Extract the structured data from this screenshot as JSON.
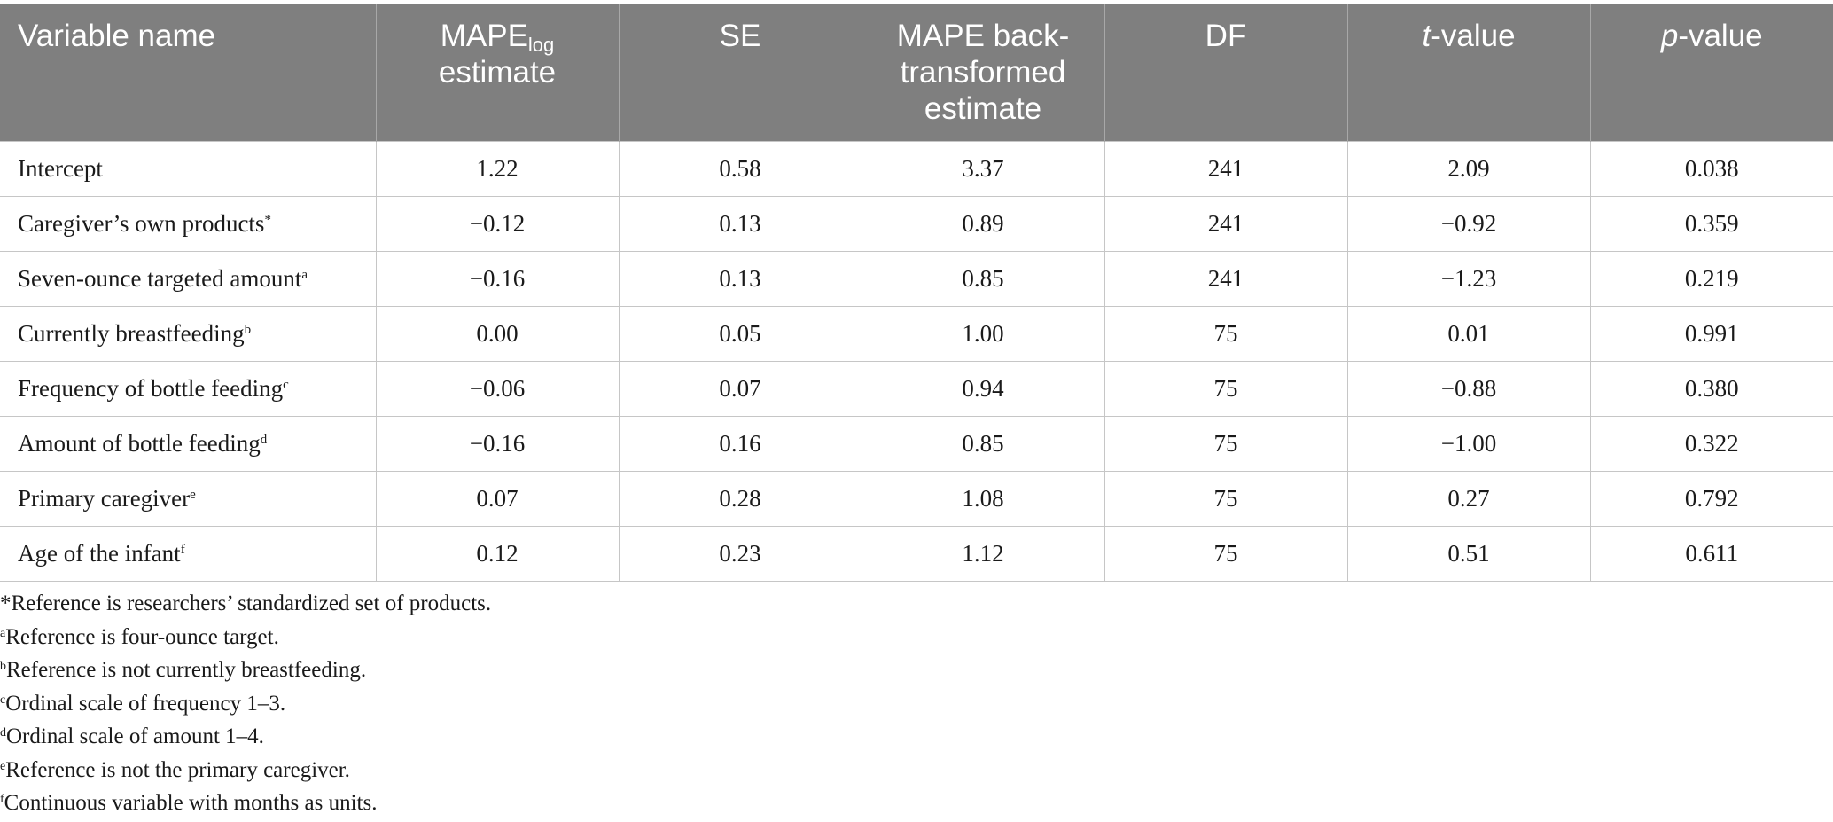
{
  "table": {
    "headers": {
      "variable_name": "Variable name",
      "mape_log_main": "MAPE",
      "mape_log_sub": "log",
      "mape_log_line2": "estimate",
      "se": "SE",
      "back_line1": "MAPE back-",
      "back_line2": "transformed",
      "back_line3": "estimate",
      "df": "DF",
      "t_italic": "t",
      "t_rest": "-value",
      "p_italic": "p",
      "p_rest": "-value"
    },
    "rows": [
      {
        "name": "Intercept",
        "mark": "",
        "mape_log": "1.22",
        "se": "0.58",
        "back": "3.37",
        "df": "241",
        "t": "2.09",
        "p": "0.038"
      },
      {
        "name": "Caregiver’s own products",
        "mark": "*",
        "mape_log": "−0.12",
        "se": "0.13",
        "back": "0.89",
        "df": "241",
        "t": "−0.92",
        "p": "0.359"
      },
      {
        "name": "Seven-ounce targeted amount",
        "mark": "a",
        "mape_log": "−0.16",
        "se": "0.13",
        "back": "0.85",
        "df": "241",
        "t": "−1.23",
        "p": "0.219"
      },
      {
        "name": "Currently breastfeeding",
        "mark": "b",
        "mape_log": "0.00",
        "se": "0.05",
        "back": "1.00",
        "df": "75",
        "t": "0.01",
        "p": "0.991"
      },
      {
        "name": "Frequency of bottle feeding",
        "mark": "c",
        "mape_log": "−0.06",
        "se": "0.07",
        "back": "0.94",
        "df": "75",
        "t": "−0.88",
        "p": "0.380"
      },
      {
        "name": "Amount of bottle feeding",
        "mark": "d",
        "mape_log": "−0.16",
        "se": "0.16",
        "back": "0.85",
        "df": "75",
        "t": "−1.00",
        "p": "0.322"
      },
      {
        "name": "Primary caregiver",
        "mark": "e",
        "mape_log": "0.07",
        "se": "0.28",
        "back": "1.08",
        "df": "75",
        "t": "0.27",
        "p": "0.792"
      },
      {
        "name": "Age of the infant",
        "mark": "f",
        "mape_log": "0.12",
        "se": "0.23",
        "back": "1.12",
        "df": "75",
        "t": "0.51",
        "p": "0.611"
      }
    ]
  },
  "footnotes": [
    {
      "mark": "*",
      "text": "Reference is researchers’ standardized set of products."
    },
    {
      "mark": "a",
      "text": "Reference is four-ounce target."
    },
    {
      "mark": "b",
      "text": "Reference is not currently breastfeeding."
    },
    {
      "mark": "c",
      "text": "Ordinal scale of frequency 1–3."
    },
    {
      "mark": "d",
      "text": "Ordinal scale of amount 1–4."
    },
    {
      "mark": "e",
      "text": "Reference is not the primary caregiver."
    },
    {
      "mark": "f",
      "text": "Continuous variable with months as units."
    }
  ],
  "colors": {
    "header_bg": "#7f7f7f",
    "header_text": "#ffffff",
    "grid": "#c6c6c6"
  }
}
